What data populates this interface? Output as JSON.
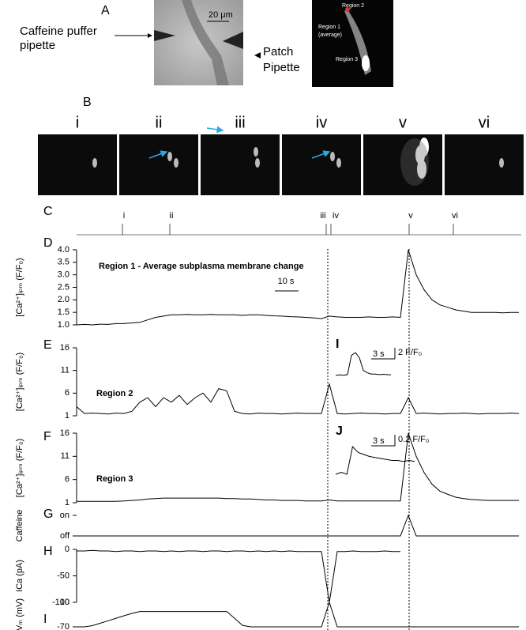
{
  "figure": {
    "panel_a": {
      "letter": "A",
      "puffer_label": [
        "Caffeine puffer",
        "pipette"
      ],
      "patch_label": [
        "Patch",
        "Pipette"
      ],
      "scale_label": "20 μm",
      "region_labels": [
        "Region 2",
        "Region 1",
        "(average)",
        "Region 3"
      ]
    },
    "panel_b": {
      "letter": "B",
      "numerals": [
        "i",
        "ii",
        "iii",
        "iv",
        "v",
        "vi"
      ]
    },
    "timeline": {
      "letter": "C",
      "labels": [
        "i",
        "ii",
        "iii",
        "iv",
        "v",
        "vi"
      ],
      "x": [
        5.8,
        11.8,
        31.6,
        32.2,
        42.1,
        47.7
      ]
    }
  },
  "chart_data": [
    {
      "type": "line",
      "letter": "D",
      "ylabel": "[Ca²⁺]ᵢₚₘ (F/F₀)",
      "annotation": "Region 1 - Average subplasma membrane change",
      "scale_label": "10 s",
      "xlim": [
        0,
        56
      ],
      "ylim": [
        1,
        4
      ],
      "yticks": [
        {
          "value": 4,
          "label": "4.0"
        },
        3.5,
        {
          "value": 3,
          "label": "3.0"
        },
        2.5,
        {
          "value": 2,
          "label": "2.0"
        },
        1.5,
        {
          "value": 1,
          "label": "1.0"
        }
      ],
      "color": "#000",
      "values": [
        1.0,
        1.02,
        1.0,
        1.03,
        1.02,
        1.05,
        1.05,
        1.08,
        1.1,
        1.2,
        1.3,
        1.35,
        1.4,
        1.4,
        1.42,
        1.4,
        1.4,
        1.42,
        1.4,
        1.4,
        1.4,
        1.38,
        1.4,
        1.4,
        1.38,
        1.36,
        1.35,
        1.33,
        1.32,
        1.3,
        1.28,
        1.25,
        1.35,
        1.32,
        1.3,
        1.3,
        1.3,
        1.32,
        1.3,
        1.3,
        1.32,
        1.3,
        4.0,
        3.0,
        2.4,
        2.0,
        1.8,
        1.7,
        1.6,
        1.55,
        1.5,
        1.5,
        1.5,
        1.5,
        1.48,
        1.5,
        1.5
      ]
    },
    {
      "type": "line",
      "letter": "E",
      "ylabel": "[Ca²⁺]ᵢₚₘ (F/F₀)",
      "annotation": "Region 2",
      "xlim": [
        0,
        56
      ],
      "ylim": [
        1,
        16
      ],
      "yticks": [
        16,
        11,
        6,
        1
      ],
      "color": "#000",
      "values": [
        3,
        1.5,
        1.6,
        1.5,
        1.4,
        1.6,
        1.5,
        2,
        4,
        5,
        3,
        5,
        4,
        5.5,
        3.5,
        5,
        6,
        4,
        7,
        6.5,
        2,
        1.5,
        1.4,
        1.6,
        1.5,
        1.5,
        1.4,
        1.5,
        1.6,
        1.5,
        1.5,
        1.5,
        8,
        1.5,
        1.4,
        1.5,
        1.6,
        1.5,
        1.5,
        1.4,
        1.5,
        1.5,
        5,
        1.5,
        1.6,
        1.5,
        1.4,
        1.5,
        1.5,
        1.6,
        1.5,
        1.4,
        1.5,
        1.5,
        1.5,
        1.6,
        1.5
      ],
      "inset": {
        "letter": "I",
        "time_label": "3 s",
        "amp_label": "2 F/F₀",
        "ylim": [
          0,
          11
        ],
        "values": [
          1,
          1.2,
          1,
          1.3,
          9,
          10,
          8,
          3,
          2,
          1.5,
          1.5,
          1.3,
          1.4,
          1.3,
          1.2
        ]
      }
    },
    {
      "type": "line",
      "letter": "F",
      "ylabel": "[Ca²⁺]ᵢₚₘ (F/F₀)",
      "annotation": "Region 3",
      "xlim": [
        0,
        56
      ],
      "ylim": [
        1,
        16
      ],
      "yticks": [
        16,
        11,
        6,
        1
      ],
      "color": "#000",
      "values": [
        1.3,
        1.3,
        1.3,
        1.3,
        1.3,
        1.3,
        1.4,
        1.5,
        1.6,
        1.8,
        1.9,
        2,
        2,
        2,
        2,
        2,
        2,
        2,
        2,
        1.9,
        1.9,
        1.8,
        1.8,
        1.7,
        1.6,
        1.6,
        1.5,
        1.5,
        1.5,
        1.4,
        1.4,
        1.4,
        1.6,
        1.4,
        1.4,
        1.4,
        1.4,
        1.4,
        1.4,
        1.4,
        1.4,
        1.4,
        16,
        11,
        7.5,
        5,
        3.5,
        2.8,
        2.2,
        1.9,
        1.7,
        1.6,
        1.5,
        1.5,
        1.5,
        1.5,
        1.5
      ],
      "inset": {
        "letter": "J",
        "time_label": "3 s",
        "amp_label": "0.2 F/F₀",
        "ylim": [
          0,
          1.8
        ],
        "values": [
          0.2,
          0.3,
          0.2,
          1.6,
          1.3,
          1.2,
          1.1,
          1.05,
          1.0,
          0.95,
          0.9,
          0.9,
          0.85,
          0.9,
          0.85
        ]
      }
    },
    {
      "type": "line",
      "letter": "G",
      "ylabel": "Caffeine",
      "xlim": [
        0,
        56
      ],
      "ylim": [
        0,
        1
      ],
      "yticks": [
        {
          "value": 1,
          "label": "on"
        },
        {
          "value": 0,
          "label": "off"
        }
      ],
      "color": "#000",
      "values": [
        0,
        0,
        0,
        0,
        0,
        0,
        0,
        0,
        0,
        0,
        0,
        0,
        0,
        0,
        0,
        0,
        0,
        0,
        0,
        0,
        0,
        0,
        0,
        0,
        0,
        0,
        0,
        0,
        0,
        0,
        0,
        0,
        0,
        0,
        0,
        0,
        0,
        0,
        0,
        0,
        0,
        0,
        1,
        0,
        0,
        0,
        0,
        0,
        0,
        0,
        0,
        0,
        0,
        0,
        0,
        0,
        0
      ]
    },
    {
      "type": "line",
      "letter": "H",
      "ylabel": "ICa (pA)",
      "xlim": [
        0,
        56
      ],
      "ylim": [
        -100,
        0
      ],
      "yticks": [
        0,
        -50,
        -100
      ],
      "color": "#000",
      "values": [
        -3,
        -3,
        -2,
        -3,
        -3,
        -4,
        -3,
        -3,
        -4,
        -3,
        -3,
        -4,
        -3,
        -4,
        -3,
        -3,
        -4,
        -3,
        -3,
        -4,
        -3,
        -3,
        -4,
        -3,
        -4,
        -3,
        -4,
        -3,
        -4,
        -4,
        -4,
        -4,
        -100,
        -4,
        -4,
        -3,
        -4,
        -4,
        -4,
        -3,
        -4,
        -4,
        null,
        null,
        null,
        null,
        null,
        null,
        null,
        null,
        null,
        null,
        null,
        null,
        null,
        null,
        null
      ]
    },
    {
      "type": "line",
      "letter": "I",
      "ylabel": "Vₘ (mV)",
      "xlim": [
        0,
        56
      ],
      "ylim": [
        -70,
        10
      ],
      "yticks": [
        10,
        -70
      ],
      "color": "#000",
      "values": [
        -70,
        -70,
        -66,
        -58,
        -50,
        -42,
        -34,
        -26,
        -20,
        -20,
        -20,
        -20,
        -20,
        -20,
        -20,
        -20,
        -20,
        -20,
        -20,
        -20,
        -42,
        -65,
        -70,
        -70,
        -70,
        -70,
        -70,
        -70,
        -70,
        -70,
        -70,
        -70,
        10,
        -70,
        -70,
        -70,
        -70,
        -70,
        -70,
        -70,
        -70,
        -70,
        -70,
        -70,
        -70,
        -70,
        -70,
        -70,
        -70,
        -70,
        -70,
        -70,
        -70,
        -70,
        -70,
        -70,
        -70
      ]
    }
  ]
}
